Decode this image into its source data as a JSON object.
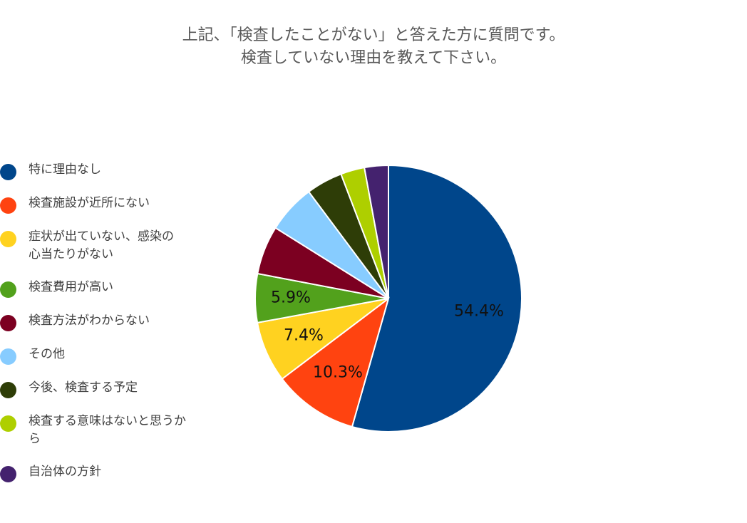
{
  "title": {
    "line1": "上記、「検査したことがない」と答えた方に質問です。",
    "line2": "検査していない理由を教えて下さい。"
  },
  "chart_data": {
    "type": "pie",
    "categories": [
      "特に理由なし",
      "検査施設が近所にない",
      "症状が出ていない、感染の心当たりがない",
      "検査費用が高い",
      "検査方法がわからない",
      "その他",
      "今後、検査する予定",
      "検査する意味はないと思うから",
      "自治体の方針"
    ],
    "values": [
      54.4,
      10.3,
      7.4,
      5.9,
      5.9,
      5.9,
      4.4,
      2.9,
      2.9
    ],
    "data_labels": [
      "54.4%",
      "10.3%",
      "7.4%",
      "5.9%",
      "",
      "",
      "",
      "",
      ""
    ],
    "colors": [
      "#00468B",
      "#FF4310",
      "#FFD220",
      "#52A11C",
      "#7C0021",
      "#87CCFF",
      "#2E3D07",
      "#AECF00",
      "#44226E"
    ],
    "legend_lines": [
      [
        "特に理由なし"
      ],
      [
        "検査施設が近所にない"
      ],
      [
        "症状が出ていない、感染の",
        "心当たりがない"
      ],
      [
        "検査費用が高い"
      ],
      [
        "検査方法がわからない"
      ],
      [
        "その他"
      ],
      [
        "今後、検査する予定"
      ],
      [
        "検査する意味はないと思うか",
        "ら"
      ],
      [
        "自治体の方針"
      ]
    ],
    "legend_position": "left",
    "start_angle_deg": 0,
    "direction": "clockwise"
  }
}
